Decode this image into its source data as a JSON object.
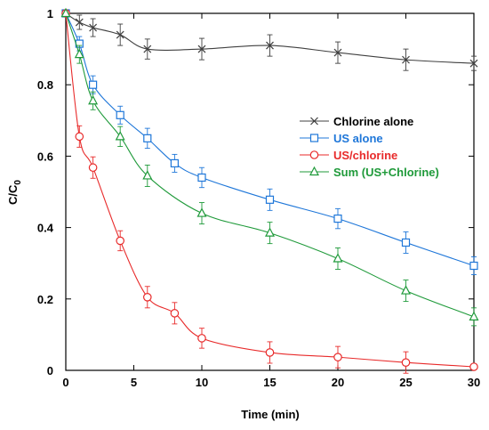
{
  "chart_data": {
    "type": "line",
    "xlabel": "Time (min)",
    "ylabel": "C/C",
    "ylabel_subscript": "0",
    "xlim": [
      0,
      30
    ],
    "ylim": [
      0,
      1
    ],
    "xticks": [
      0,
      5,
      10,
      15,
      20,
      25,
      30
    ],
    "yticks": [
      0,
      0.2,
      0.4,
      0.6,
      0.8,
      1
    ],
    "ytick_labels": [
      "0",
      "0.2",
      "0.4",
      "0.6",
      "0.8",
      "1"
    ],
    "grid": false,
    "legend_position": "right",
    "series": [
      {
        "name": "Chlorine alone",
        "color": "#404040",
        "marker": "x",
        "x": [
          0,
          1,
          2,
          4,
          6,
          10,
          15,
          20,
          25,
          30
        ],
        "y": [
          1.0,
          0.975,
          0.96,
          0.94,
          0.9,
          0.9,
          0.91,
          0.89,
          0.87,
          0.86
        ],
        "err": [
          0.01,
          0.02,
          0.025,
          0.03,
          0.028,
          0.03,
          0.03,
          0.03,
          0.03,
          0.02
        ]
      },
      {
        "name": "US alone",
        "color": "#1f77d9",
        "marker": "square",
        "x": [
          0,
          1,
          2,
          4,
          6,
          8,
          10,
          15,
          20,
          25,
          30
        ],
        "y": [
          1.0,
          0.915,
          0.8,
          0.715,
          0.65,
          0.58,
          0.54,
          0.478,
          0.425,
          0.358,
          0.293
        ],
        "err": [
          0.01,
          0.02,
          0.025,
          0.025,
          0.028,
          0.025,
          0.028,
          0.03,
          0.028,
          0.03,
          0.025
        ]
      },
      {
        "name": "US/chlorine",
        "color": "#e82a2a",
        "marker": "circle",
        "x": [
          0,
          1,
          2,
          4,
          6,
          8,
          10,
          15,
          20,
          25,
          30
        ],
        "y": [
          1.0,
          0.655,
          0.568,
          0.363,
          0.205,
          0.16,
          0.09,
          0.05,
          0.037,
          0.022,
          0.01
        ],
        "err": [
          0.01,
          0.03,
          0.03,
          0.028,
          0.03,
          0.03,
          0.028,
          0.03,
          0.03,
          0.03,
          0.01
        ]
      },
      {
        "name": "Sum (US+Chlorine)",
        "color": "#1f9a3a",
        "marker": "triangle",
        "x": [
          0,
          1,
          2,
          4,
          6,
          10,
          15,
          20,
          25,
          30
        ],
        "y": [
          1.0,
          0.885,
          0.755,
          0.655,
          0.545,
          0.44,
          0.385,
          0.313,
          0.223,
          0.15
        ],
        "err": [
          0.01,
          0.025,
          0.025,
          0.028,
          0.03,
          0.03,
          0.03,
          0.03,
          0.03,
          0.025
        ]
      }
    ]
  }
}
